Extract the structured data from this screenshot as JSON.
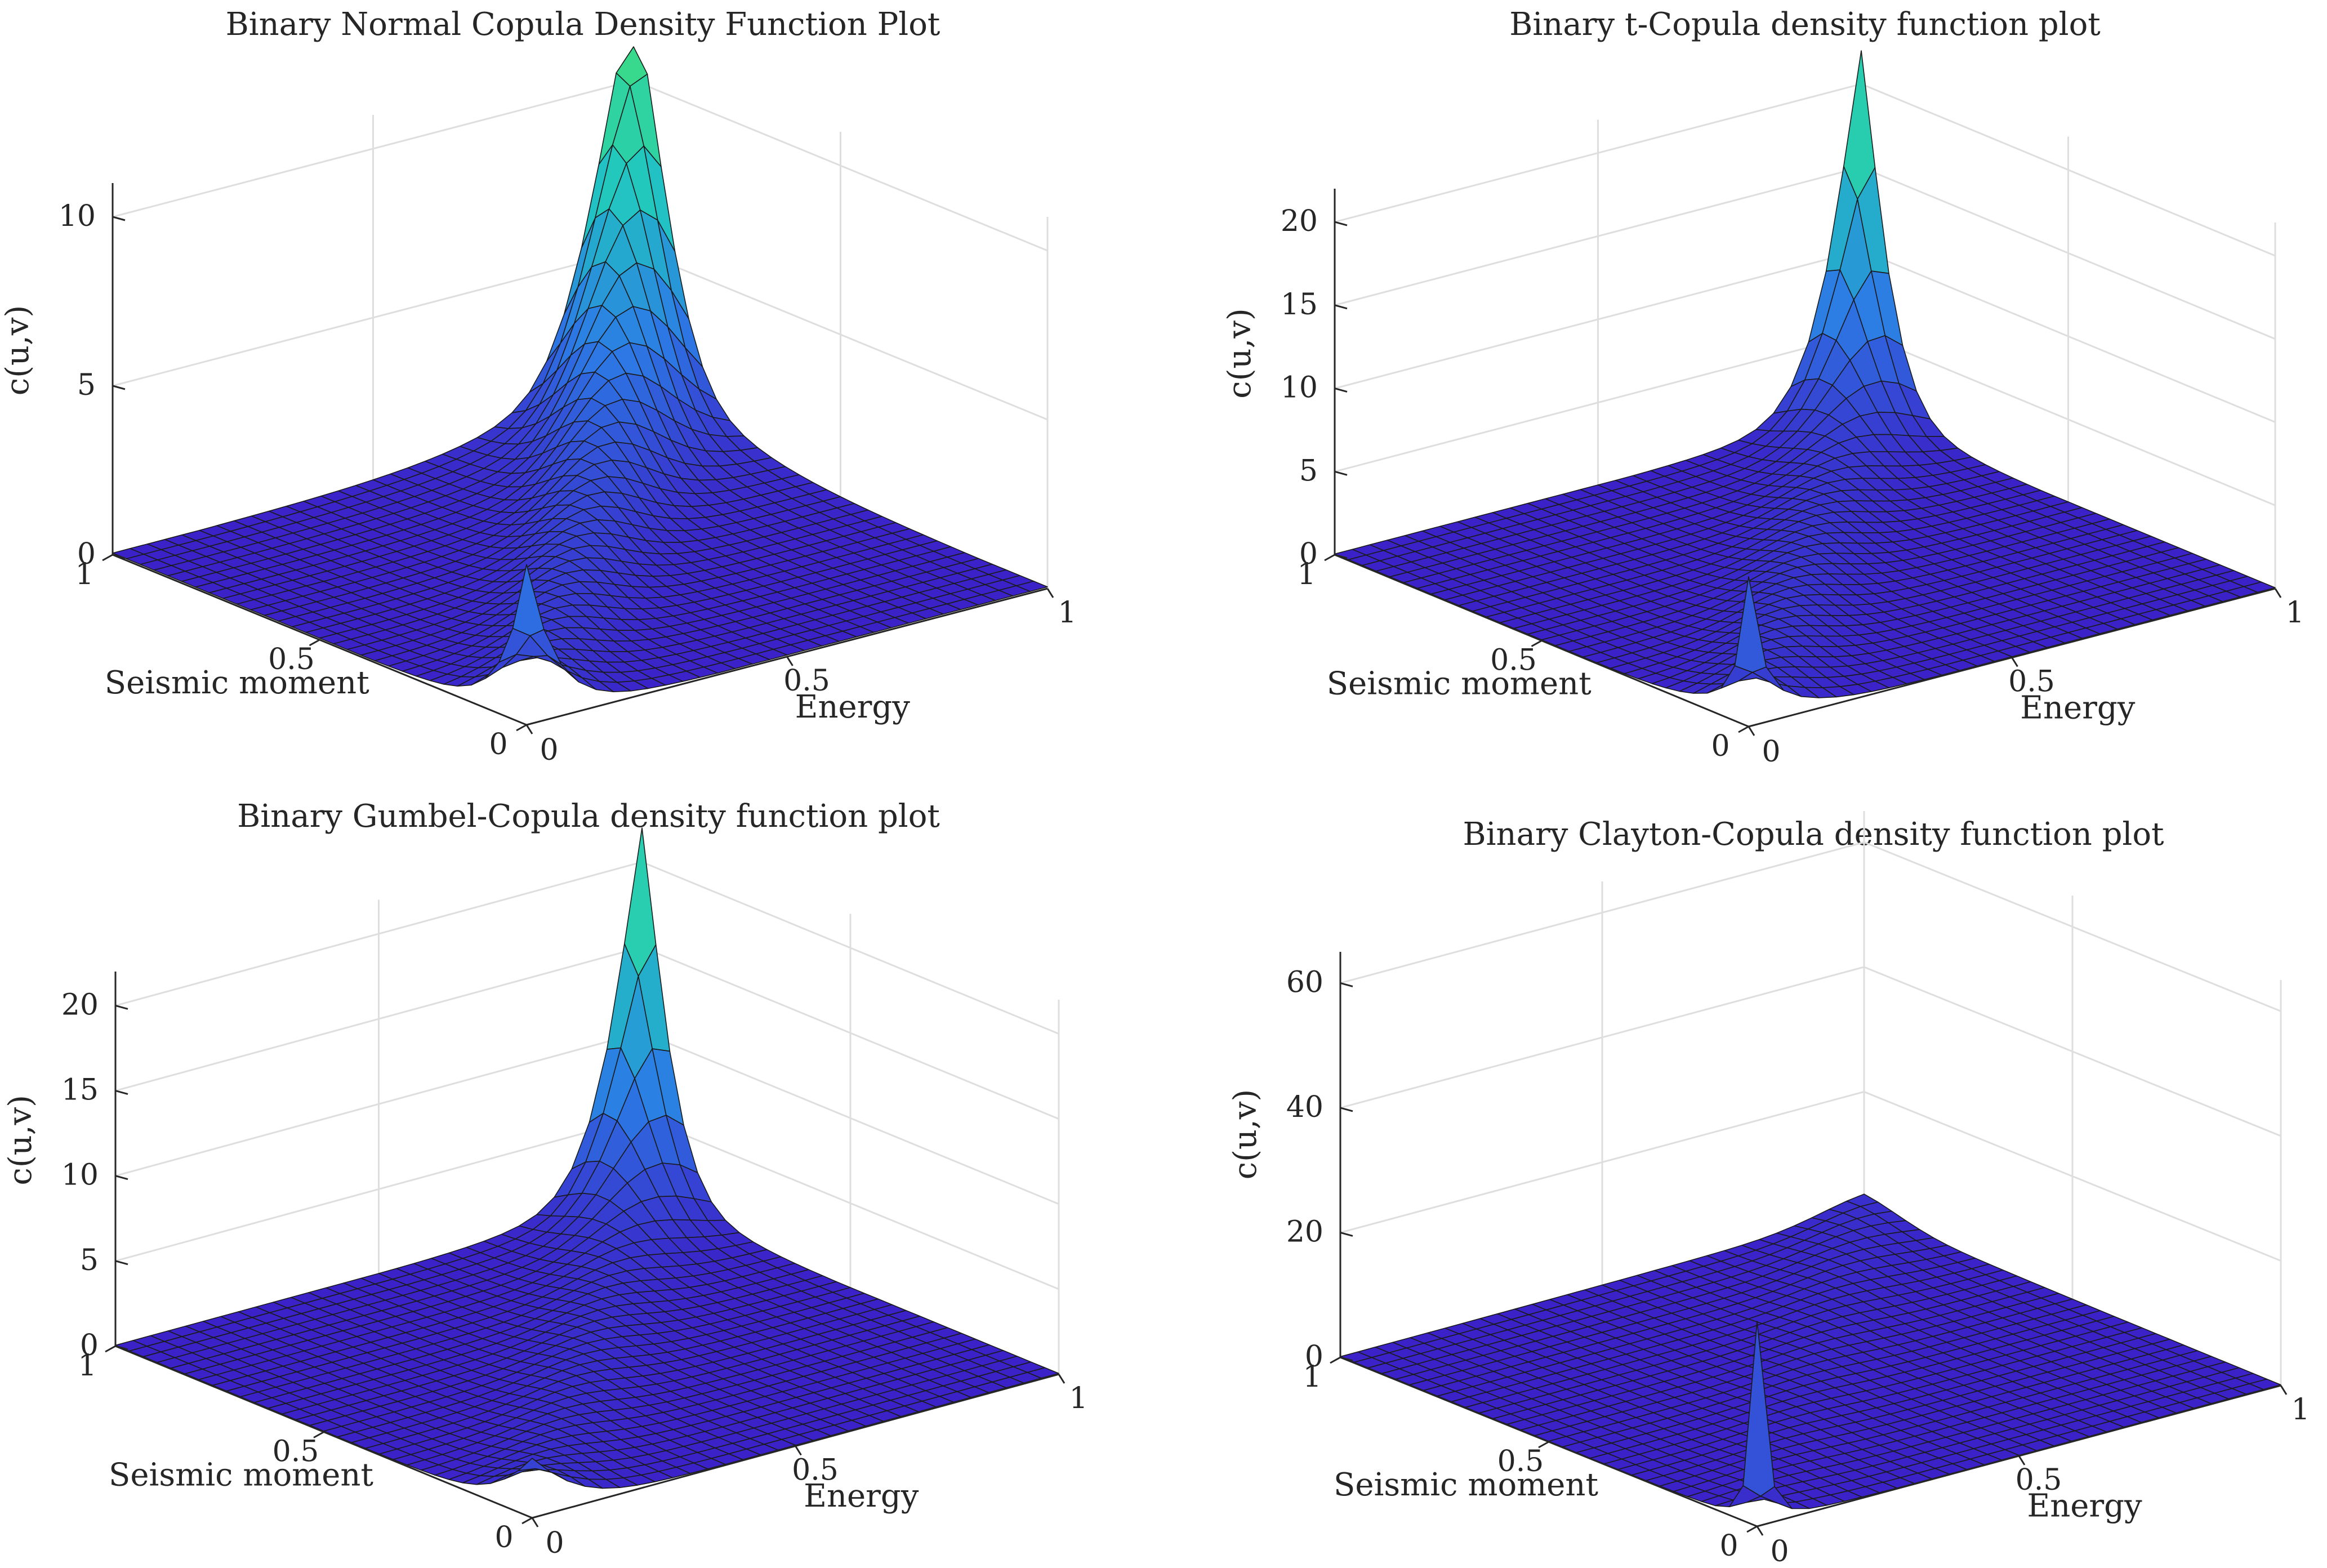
{
  "figure_title": "",
  "chart_data": [
    {
      "type": "surface",
      "title": "Binary Normal Copula Density Function Plot",
      "xlabel": "Energy",
      "ylabel": "Seismic moment",
      "zlabel": "c(u,v)",
      "xlim": [
        0,
        1
      ],
      "ylim": [
        0,
        1
      ],
      "zlim": [
        0,
        11
      ],
      "xticks": [
        "0",
        "0.5",
        "1"
      ],
      "yticks": [
        "0",
        "0.5",
        "1"
      ],
      "zticks": [
        "0",
        "5",
        "10"
      ],
      "zticklabels_values": [
        0,
        5,
        10
      ],
      "grid": true,
      "grid_size": 30,
      "family": "gaussian",
      "param": 0.75,
      "peak_high_corner": 11.0,
      "peak_low_corner": 4.0,
      "colormap": [
        "#3b21c8",
        "#2c7be5",
        "#21c7c0",
        "#3ddc84"
      ]
    },
    {
      "type": "surface",
      "title": "Binary t-Copula density function plot",
      "xlabel": "Energy",
      "ylabel": "Seismic moment",
      "zlabel": "c(u,v)",
      "xlim": [
        0,
        1
      ],
      "ylim": [
        0,
        1
      ],
      "zlim": [
        0,
        22
      ],
      "xticks": [
        "0",
        "0.5",
        "1"
      ],
      "yticks": [
        "0",
        "0.5",
        "1"
      ],
      "zticks": [
        "0",
        "5",
        "10",
        "15",
        "20"
      ],
      "zticklabels_values": [
        0,
        5,
        10,
        15,
        20
      ],
      "grid": true,
      "grid_size": 30,
      "family": "t",
      "param": 0.7,
      "peak_high_corner": 22.0,
      "peak_low_corner": 7.5,
      "colormap": [
        "#3b21c8",
        "#2c7be5",
        "#21c7c0",
        "#3ddc84"
      ]
    },
    {
      "type": "surface",
      "title": "Binary Gumbel-Copula density function plot",
      "xlabel": "Energy",
      "ylabel": "Seismic moment",
      "zlabel": "c(u,v)",
      "xlim": [
        0,
        1
      ],
      "ylim": [
        0,
        1
      ],
      "zlim": [
        0,
        22
      ],
      "xticks": [
        "0",
        "0.5",
        "1"
      ],
      "yticks": [
        "0",
        "0.5",
        "1"
      ],
      "zticks": [
        "0",
        "5",
        "10",
        "15",
        "20"
      ],
      "zticklabels_values": [
        0,
        5,
        10,
        15,
        20
      ],
      "grid": true,
      "grid_size": 30,
      "family": "gumbel",
      "param": 2.0,
      "peak_high_corner": 22.0,
      "peak_low_corner": 2.8,
      "colormap": [
        "#3b21c8",
        "#2c7be5",
        "#21c7c0",
        "#3ddc84"
      ]
    },
    {
      "type": "surface",
      "title": "Binary Clayton-Copula density function plot",
      "xlabel": "Energy",
      "ylabel": "Seismic moment",
      "zlabel": "c(u,v)",
      "xlim": [
        0,
        1
      ],
      "ylim": [
        0,
        1
      ],
      "zlim": [
        0,
        65
      ],
      "xticks": [
        "0",
        "0.5",
        "1"
      ],
      "yticks": [
        "0",
        "0.5",
        "1"
      ],
      "zticks": [
        "0",
        "20",
        "40",
        "60"
      ],
      "zticklabels_values": [
        0,
        20,
        40,
        60
      ],
      "grid": true,
      "grid_size": 30,
      "family": "clayton",
      "param": 2.0,
      "peak_high_corner": 3.5,
      "peak_low_corner": 32.0,
      "colormap": [
        "#3b21c8",
        "#2c7be5",
        "#21c7c0",
        "#3ddc84"
      ]
    }
  ]
}
